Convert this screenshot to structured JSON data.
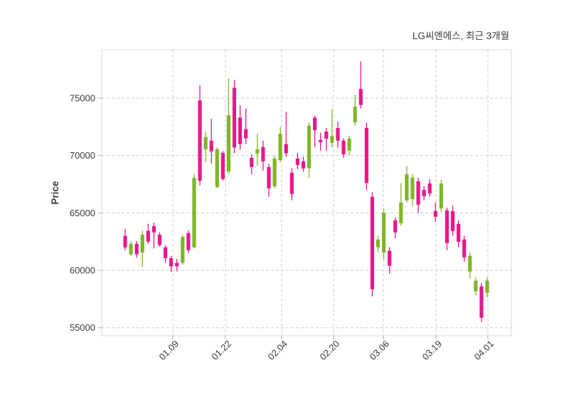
{
  "chart_data": {
    "type": "candlestick",
    "title": "LG씨엔에스, 최근 3개월",
    "ylabel": "Price",
    "grid": true,
    "legend_position": "none",
    "ylim": [
      54300,
      79210
    ],
    "yticks": [
      55000,
      60000,
      65000,
      70000,
      75000
    ],
    "xticks": [
      {
        "label": "01.09",
        "pos": 0.1736
      },
      {
        "label": "01.22",
        "pos": 0.302
      },
      {
        "label": "02.04",
        "pos": 0.4392
      },
      {
        "label": "02.20",
        "pos": 0.566
      },
      {
        "label": "03.06",
        "pos": 0.6875
      },
      {
        "label": "03.19",
        "pos": 0.816
      },
      {
        "label": "04.01",
        "pos": 0.9427
      }
    ],
    "colors": {
      "up": "#7fb626",
      "down": "#e8188c",
      "grid": "#cdcdcd",
      "border": "#d9d9d9",
      "tick": "#ababab",
      "text": "#3a3a3a",
      "background": "#ffffff"
    },
    "candles_ohlc_note": "each item is [open, high, low, close]; close>=open renders green (up), close<open renders pink (down)",
    "candles_ohlc": [
      [
        63000,
        63600,
        61750,
        62000
      ],
      [
        61400,
        62550,
        61250,
        62300
      ],
      [
        62300,
        62550,
        61100,
        61400
      ],
      [
        61550,
        63450,
        60300,
        63100
      ],
      [
        63450,
        64050,
        62300,
        62500
      ],
      [
        63850,
        64150,
        61900,
        63300
      ],
      [
        63100,
        63300,
        62050,
        62200
      ],
      [
        62000,
        62200,
        60650,
        61050
      ],
      [
        61050,
        61250,
        59850,
        60350
      ],
      [
        60650,
        61000,
        59900,
        60350
      ],
      [
        60650,
        63100,
        60500,
        62900
      ],
      [
        63250,
        63500,
        61500,
        61750
      ],
      [
        62000,
        68400,
        61900,
        68050
      ],
      [
        74800,
        76100,
        67400,
        67800
      ],
      [
        70550,
        72100,
        69430,
        71600
      ],
      [
        71290,
        73200,
        69300,
        70360
      ],
      [
        67250,
        70700,
        67150,
        70550
      ],
      [
        70230,
        70400,
        67800,
        67950
      ],
      [
        68600,
        76700,
        68400,
        73500
      ],
      [
        75900,
        76600,
        70200,
        70700
      ],
      [
        73300,
        74400,
        70500,
        71000
      ],
      [
        72300,
        74100,
        71000,
        71500
      ],
      [
        69800,
        70110,
        68380,
        69000
      ],
      [
        70170,
        71900,
        69120,
        70540
      ],
      [
        70730,
        71290,
        68690,
        69490
      ],
      [
        68990,
        69300,
        66400,
        67140
      ],
      [
        67320,
        70000,
        67140,
        69740
      ],
      [
        69600,
        72500,
        69400,
        71900
      ],
      [
        71000,
        73800,
        69900,
        70200
      ],
      [
        68500,
        68900,
        66100,
        66650
      ],
      [
        69740,
        70230,
        68810,
        69180
      ],
      [
        69490,
        69900,
        68600,
        68870
      ],
      [
        68900,
        72900,
        68050,
        72600
      ],
      [
        73300,
        73450,
        70750,
        72200
      ],
      [
        71350,
        71970,
        70420,
        71160
      ],
      [
        72090,
        72400,
        70420,
        71470
      ],
      [
        71100,
        74050,
        70730,
        71700
      ],
      [
        72400,
        72950,
        70670,
        71290
      ],
      [
        71300,
        71500,
        69800,
        70100
      ],
      [
        70420,
        71720,
        70000,
        71470
      ],
      [
        72890,
        75300,
        72590,
        74260
      ],
      [
        75800,
        78200,
        74100,
        74400
      ],
      [
        72400,
        72890,
        67010,
        67600
      ],
      [
        66400,
        66830,
        57730,
        58350
      ],
      [
        62000,
        62990,
        61560,
        62680
      ],
      [
        61550,
        65400,
        60900,
        65000
      ],
      [
        61700,
        62000,
        59700,
        60400
      ],
      [
        64350,
        64600,
        62800,
        63300
      ],
      [
        64100,
        67600,
        63900,
        65900
      ],
      [
        66100,
        69100,
        65900,
        68380
      ],
      [
        66200,
        68400,
        65600,
        68070
      ],
      [
        67760,
        68070,
        65000,
        65710
      ],
      [
        67000,
        67320,
        66090,
        66460
      ],
      [
        67570,
        67940,
        66400,
        66700
      ],
      [
        65160,
        65900,
        64230,
        64660
      ],
      [
        65400,
        67880,
        65090,
        67570
      ],
      [
        65220,
        65460,
        61750,
        62370
      ],
      [
        65160,
        65650,
        63000,
        63420
      ],
      [
        64040,
        64350,
        62000,
        62490
      ],
      [
        62680,
        62990,
        60760,
        61130
      ],
      [
        59890,
        61560,
        59270,
        61260
      ],
      [
        58160,
        59400,
        57850,
        59090
      ],
      [
        58590,
        58900,
        55500,
        55870
      ],
      [
        58040,
        59400,
        57660,
        59090
      ]
    ]
  }
}
